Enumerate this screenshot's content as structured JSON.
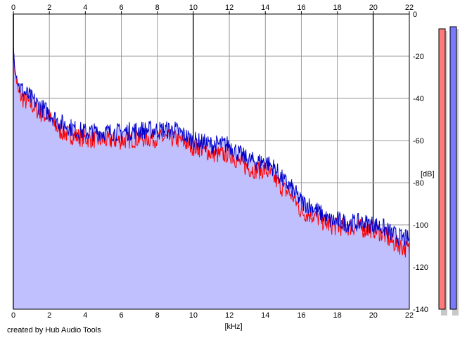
{
  "credit": "created by Hub Audio Tools",
  "chart_data": {
    "type": "line",
    "title": "",
    "xlabel": "[kHz]",
    "ylabel": "[dB]",
    "xlim": [
      0,
      22
    ],
    "ylim": [
      -140,
      0
    ],
    "x_ticks": [
      0,
      2,
      4,
      6,
      8,
      10,
      12,
      14,
      16,
      18,
      20,
      22
    ],
    "y_ticks": [
      0,
      -20,
      -40,
      -60,
      -80,
      -100,
      -120,
      -140
    ],
    "grid": true,
    "fill_color": "#c0c0ff",
    "series": [
      {
        "color": "#ff0000",
        "x": [
          0,
          0.1,
          0.3,
          0.6,
          1,
          1.5,
          2,
          2.5,
          3,
          3.5,
          4,
          5,
          6,
          7,
          8,
          9,
          10,
          10.5,
          11,
          11.5,
          12,
          12.5,
          13,
          13.5,
          14,
          14.5,
          15,
          15.5,
          16,
          16.5,
          17,
          17.5,
          18,
          18.5,
          19,
          19.5,
          20,
          20.5,
          21,
          21.5,
          22
        ],
        "values": [
          -18,
          -28,
          -38,
          -41,
          -43,
          -47,
          -49,
          -55,
          -57,
          -58,
          -59,
          -60,
          -60,
          -59,
          -59,
          -59,
          -63,
          -64,
          -66,
          -67,
          -66,
          -70,
          -73,
          -74,
          -74,
          -78,
          -83,
          -86,
          -94,
          -95,
          -97,
          -100,
          -101,
          -101,
          -101,
          -102,
          -102,
          -104,
          -108,
          -110,
          -112
        ]
      },
      {
        "color": "#0000cc",
        "x": [
          0,
          0.1,
          0.3,
          0.6,
          1,
          1.5,
          2,
          2.5,
          3,
          3.5,
          4,
          5,
          6,
          7,
          8,
          9,
          10,
          10.5,
          11,
          11.5,
          12,
          12.5,
          13,
          13.5,
          14,
          14.5,
          15,
          15.5,
          16,
          16.5,
          17,
          17.5,
          18,
          18.5,
          19,
          19.5,
          20,
          20.5,
          21,
          21.5,
          22
        ],
        "values": [
          -16,
          -26,
          -34,
          -37,
          -40,
          -44,
          -47,
          -51,
          -53,
          -55,
          -56,
          -56,
          -56,
          -55,
          -55,
          -55,
          -60,
          -61,
          -62,
          -62,
          -62,
          -66,
          -69,
          -70,
          -70,
          -73,
          -79,
          -83,
          -89,
          -91,
          -94,
          -98,
          -98,
          -99,
          -99,
          -99,
          -100,
          -101,
          -104,
          -106,
          -107
        ]
      }
    ],
    "level_meters": [
      {
        "color": "#ff7a7a",
        "value_db": -7
      },
      {
        "color": "#7a7aff",
        "value_db": -6
      }
    ]
  }
}
